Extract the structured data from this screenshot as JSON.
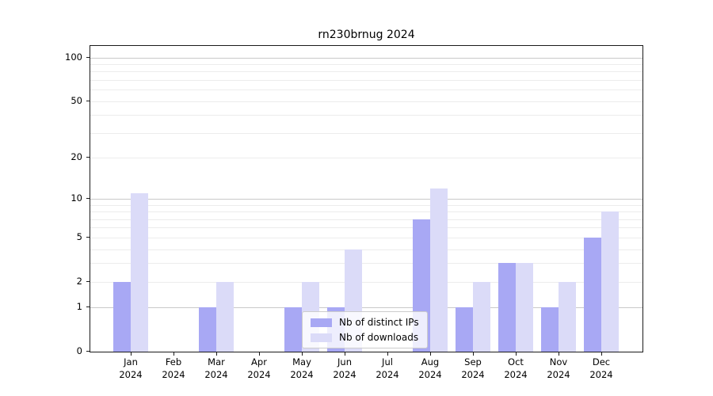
{
  "chart_data": {
    "type": "bar",
    "title": "rn230brnug 2024",
    "categories": [
      "Jan",
      "Feb",
      "Mar",
      "Apr",
      "May",
      "Jun",
      "Jul",
      "Aug",
      "Sep",
      "Oct",
      "Nov",
      "Dec"
    ],
    "year_label": "2024",
    "series": [
      {
        "name": "Nb of distinct IPs",
        "color": "#a8a8f4",
        "values": [
          2,
          0,
          1,
          0,
          1,
          1,
          0,
          7,
          1,
          3,
          1,
          5
        ]
      },
      {
        "name": "Nb of downloads",
        "color": "#dbdbf8",
        "values": [
          11,
          0,
          2,
          0,
          2,
          4,
          0,
          12,
          2,
          3,
          2,
          8
        ]
      }
    ],
    "scale": "log1p",
    "ylim": [
      0,
      120
    ],
    "yticks_labeled": [
      0,
      1,
      2,
      5,
      10,
      20,
      50,
      100
    ],
    "gridlines_decade": [
      1,
      10,
      100
    ],
    "gridlines_minor": [
      2,
      3,
      4,
      5,
      6,
      7,
      8,
      9,
      20,
      30,
      40,
      50,
      60,
      70,
      80,
      90
    ],
    "grid": true,
    "xlabel": "",
    "ylabel": "",
    "legend_position": "lower center"
  },
  "colors": {
    "axis": "#1a1a1a",
    "grid_decade": "#c9c9c9",
    "grid_minor": "#ececec",
    "legend_border": "#cccccc",
    "text": "#000000"
  }
}
